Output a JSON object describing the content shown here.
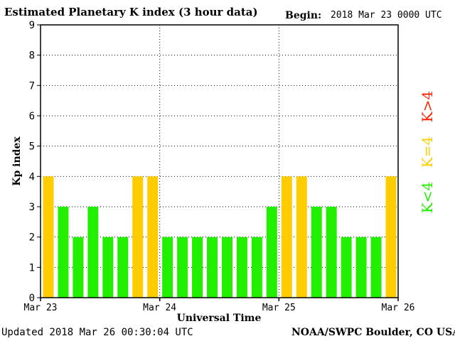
{
  "title": "Estimated Planetary K index (3 hour data)",
  "begin_label": "Begin:",
  "begin_value": "2018 Mar 23 0000 UTC",
  "updated": "Updated 2018 Mar 26 00:30:04 UTC",
  "credit": "NOAA/SWPC Boulder, CO USA",
  "colors": {
    "below4": "#22ee00",
    "equal4": "#ffcc00",
    "above4": "#ff2200"
  },
  "legend": {
    "above": "K>4",
    "equal": "K=4",
    "below": "K<4"
  },
  "chart_data": {
    "type": "bar",
    "xlabel": "Universal Time",
    "ylabel": "Kp index",
    "ylim": [
      0,
      9
    ],
    "yticks": [
      0,
      1,
      2,
      3,
      4,
      5,
      6,
      7,
      8,
      9
    ],
    "xticks": [
      "Mar 23",
      "Mar 24",
      "Mar 25",
      "Mar 26"
    ],
    "grid": true,
    "values": [
      4,
      3,
      2,
      3,
      2,
      2,
      4,
      4,
      2,
      2,
      2,
      2,
      2,
      2,
      2,
      3,
      4,
      4,
      3,
      3,
      2,
      2,
      2,
      4
    ]
  }
}
